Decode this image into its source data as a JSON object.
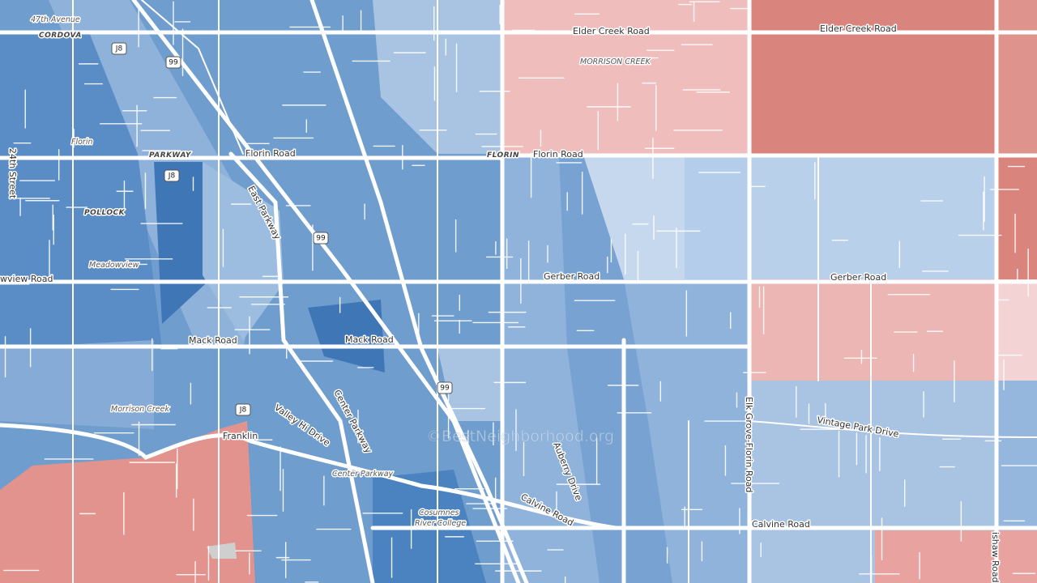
{
  "labels": [
    {
      "text": "47th Avenue"
    },
    {
      "text": "CORDOVA"
    },
    {
      "text": "Elder Creek Road"
    },
    {
      "text": "Elder Creek Road"
    },
    {
      "text": "MORRISON CREEK"
    },
    {
      "text": "24th Street"
    },
    {
      "text": "Florin"
    },
    {
      "text": "PARKWAY"
    },
    {
      "text": "Florin Road"
    },
    {
      "text": "FLORIN"
    },
    {
      "text": "Florin Road"
    },
    {
      "text": "East Parkway"
    },
    {
      "text": "POLLOCK"
    },
    {
      "text": "Meadowview"
    },
    {
      "text": "wview Road"
    },
    {
      "text": "Gerber Road"
    },
    {
      "text": "Gerber Road"
    },
    {
      "text": "Mack Road"
    },
    {
      "text": "Mack Road"
    },
    {
      "text": "Morrison Creek"
    },
    {
      "text": "Valley Hi Drive"
    },
    {
      "text": "Center Parkway"
    },
    {
      "text": "Franklin"
    },
    {
      "text": "Center Parkway"
    },
    {
      "text": "Auberry Drive"
    },
    {
      "text": "Cosumnes"
    },
    {
      "text": "River College"
    },
    {
      "text": "Calvine Road"
    },
    {
      "text": "Calvine Road"
    },
    {
      "text": "Elk Grove-Florin Road"
    },
    {
      "text": "Vintage Park Drive"
    },
    {
      "text": "ishaw Road"
    }
  ],
  "shields": [
    {
      "text": "J8"
    },
    {
      "text": "99"
    },
    {
      "text": "J8"
    },
    {
      "text": "99"
    },
    {
      "text": "99"
    },
    {
      "text": "J8"
    }
  ],
  "watermark": "©BestNeighborhood.org"
}
